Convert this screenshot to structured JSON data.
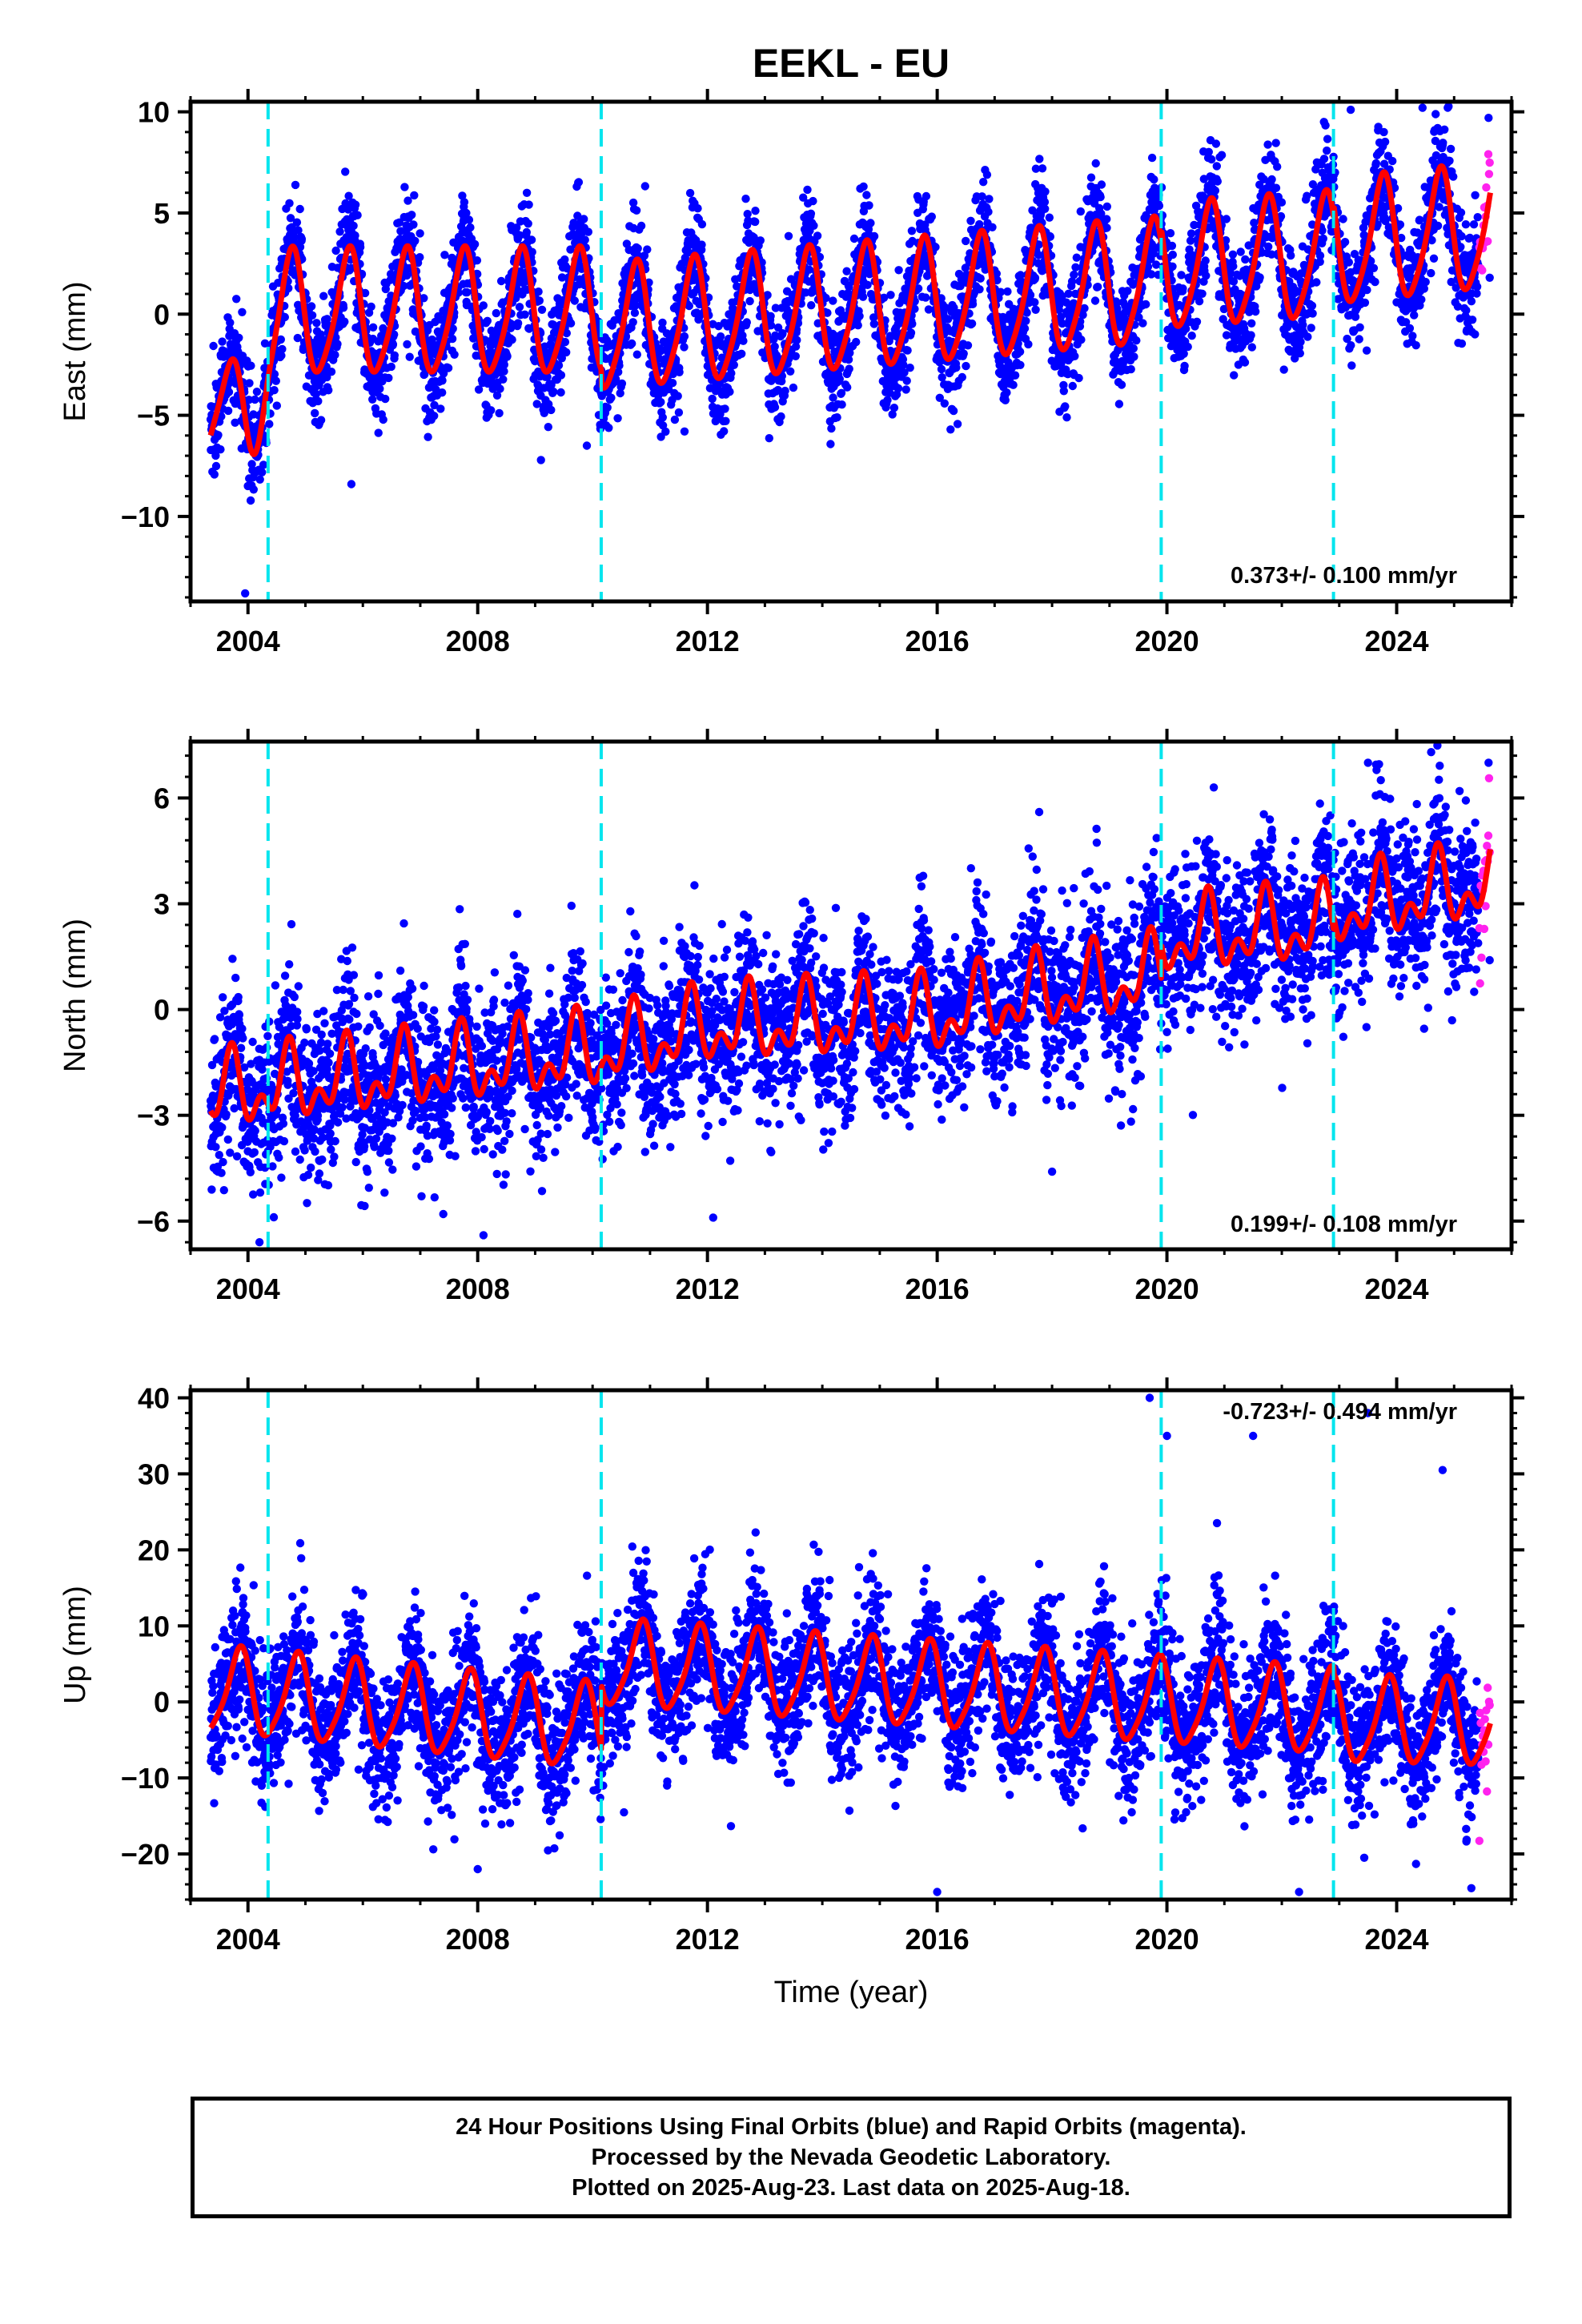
{
  "title": "EEKL - EU",
  "colors": {
    "final_orbits": "#0000ff",
    "rapid_orbits": "#ff22ee",
    "fit": "#ff0000",
    "equipment_change": "#00e5ee",
    "frame": "#000000"
  },
  "chart_data": [
    {
      "type": "scatter",
      "name": "east",
      "ylabel": "East (mm)",
      "ylim": [
        -14.2,
        10.5
      ],
      "yticks": [
        -10,
        -5,
        0,
        5,
        10
      ],
      "yticklabels": [
        "−10",
        "−5",
        "0",
        "5",
        "10"
      ],
      "xlim": [
        2003.0,
        2026.0
      ],
      "xticks": [
        2004,
        2008,
        2012,
        2016,
        2020,
        2024
      ],
      "xticklabels": [
        "2004",
        "2008",
        "2012",
        "2016",
        "2020",
        "2024"
      ],
      "xlabel": "",
      "grid": false,
      "rate_label": "0.373+/- 0.100 mm/yr",
      "equipment_changes": [
        2004.35,
        2010.15,
        2019.9,
        2022.9
      ],
      "model": {
        "start": 2003.35,
        "end_final": 2025.42,
        "end_rapid": 2025.63,
        "trend": [
          [
            2003.35,
            -3.8
          ],
          [
            2004.35,
            0.0
          ],
          [
            2010.15,
            0.0
          ],
          [
            2010.16,
            -0.8
          ],
          [
            2019.9,
            1.5
          ],
          [
            2019.91,
            2.2
          ],
          [
            2022.9,
            2.8
          ],
          [
            2022.91,
            3.4
          ],
          [
            2025.63,
            4.2
          ]
        ],
        "annual_amp": 3.0,
        "annual_phase": 0.5,
        "semiannual_amp": 0.5,
        "semiannual_phase": 0.2,
        "scatter": 1.4,
        "dip": {
          "center": 2003.95,
          "width": 0.35,
          "depth": -4.5
        }
      },
      "outliers": [
        [
          2003.95,
          -13.8
        ],
        [
          2005.8,
          -8.4
        ],
        [
          2009.9,
          -6.5
        ],
        [
          2011.6,
          -5.8
        ],
        [
          2023.2,
          10.1
        ],
        [
          2024.45,
          10.2
        ],
        [
          2025.6,
          9.7
        ],
        [
          2025.62,
          1.8
        ]
      ]
    },
    {
      "type": "scatter",
      "name": "north",
      "ylabel": "North (mm)",
      "ylim": [
        -6.8,
        7.6
      ],
      "yticks": [
        -6,
        -3,
        0,
        3,
        6
      ],
      "yticklabels": [
        "−6",
        "−3",
        "0",
        "3",
        "6"
      ],
      "xlim": [
        2003.0,
        2026.0
      ],
      "xticks": [
        2004,
        2008,
        2012,
        2016,
        2020,
        2024
      ],
      "xticklabels": [
        "2004",
        "2008",
        "2012",
        "2016",
        "2020",
        "2024"
      ],
      "xlabel": "",
      "grid": false,
      "rate_label": "0.199+/- 0.108 mm/yr",
      "equipment_changes": [
        2004.35,
        2010.15,
        2019.9,
        2022.9
      ],
      "model": {
        "start": 2003.35,
        "end_final": 2025.42,
        "end_rapid": 2025.63,
        "trend": [
          [
            2003.35,
            -2.4
          ],
          [
            2010.15,
            -1.2
          ],
          [
            2012.0,
            -0.5
          ],
          [
            2016.0,
            -0.2
          ],
          [
            2017.3,
            0.3
          ],
          [
            2019.9,
            1.0
          ],
          [
            2019.91,
            2.0
          ],
          [
            2022.9,
            2.4
          ],
          [
            2022.91,
            2.8
          ],
          [
            2025.63,
            3.6
          ]
        ],
        "annual_amp": 0.8,
        "annual_phase": 0.45,
        "semiannual_amp": 0.6,
        "semiannual_phase": 0.1,
        "scatter": 1.15,
        "dip": null
      },
      "outliers": [
        [
          2004.2,
          -6.6
        ],
        [
          2007.4,
          -5.8
        ],
        [
          2008.1,
          -6.4
        ],
        [
          2012.1,
          -5.9
        ],
        [
          2018.0,
          -4.6
        ],
        [
          2023.5,
          7.0
        ],
        [
          2024.6,
          7.3
        ],
        [
          2025.6,
          7.0
        ],
        [
          2025.62,
          1.4
        ]
      ]
    },
    {
      "type": "scatter",
      "name": "up",
      "ylabel": "Up (mm)",
      "ylim": [
        -26.0,
        41.0
      ],
      "yticks": [
        -20,
        -10,
        0,
        10,
        20,
        30,
        40
      ],
      "yticklabels": [
        "−20",
        "−10",
        "0",
        "10",
        "20",
        "30",
        "40"
      ],
      "xlim": [
        2003.0,
        2026.0
      ],
      "xticks": [
        2004,
        2008,
        2012,
        2016,
        2020,
        2024
      ],
      "xticklabels": [
        "2004",
        "2008",
        "2012",
        "2016",
        "2020",
        "2024"
      ],
      "xlabel": "Time (year)",
      "grid": false,
      "rate_label": "-0.723+/- 0.494 mm/yr",
      "equipment_changes": [
        2004.35,
        2010.15,
        2019.9,
        2022.9
      ],
      "model": {
        "start": 2003.35,
        "end_final": 2025.42,
        "end_rapid": 2025.63,
        "trend": [
          [
            2003.35,
            1.5
          ],
          [
            2010.15,
            -3.5
          ],
          [
            2010.16,
            5.0
          ],
          [
            2019.9,
            0.0
          ],
          [
            2019.91,
            0.0
          ],
          [
            2022.9,
            -1.5
          ],
          [
            2022.91,
            -2.5
          ],
          [
            2025.63,
            -3.0
          ]
        ],
        "annual_amp": 5.5,
        "annual_phase": 0.6,
        "semiannual_amp": 1.0,
        "semiannual_phase": 0.3,
        "scatter": 4.6,
        "dip": null
      },
      "outliers": [
        [
          2019.7,
          40.0
        ],
        [
          2020.0,
          35.0
        ],
        [
          2021.5,
          35.0
        ],
        [
          2023.5,
          38.0
        ],
        [
          2016.0,
          -25.0
        ],
        [
          2022.3,
          -25.0
        ],
        [
          2024.8,
          30.5
        ],
        [
          2025.3,
          -24.5
        ],
        [
          2008.0,
          -22.0
        ]
      ]
    }
  ],
  "footer": {
    "line1": "24 Hour Positions Using Final Orbits (blue) and Rapid Orbits (magenta).",
    "line2": "Processed by the Nevada Geodetic Laboratory.",
    "line3": "Plotted on 2025-Aug-23. Last data on 2025-Aug-18."
  }
}
